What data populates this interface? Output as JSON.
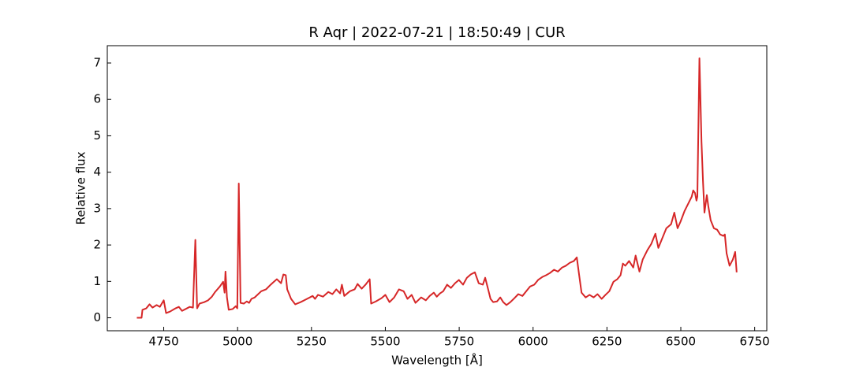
{
  "chart_data": {
    "type": "line",
    "title": "R Aqr | 2022-07-21 | 18:50:49 | CUR",
    "xlabel": "Wavelength [Å]",
    "ylabel": "Relative flux",
    "color": "#d62728",
    "x": [
      4659,
      4675,
      4678,
      4691,
      4702,
      4712,
      4726,
      4737,
      4750,
      4758,
      4771,
      4790,
      4801,
      4812,
      4838,
      4849,
      4857,
      4863,
      4871,
      4887,
      4900,
      4913,
      4924,
      4940,
      4951,
      4956,
      4959,
      4964,
      4970,
      4983,
      4994,
      4999,
      5004,
      5010,
      5021,
      5031,
      5039,
      5047,
      5058,
      5080,
      5096,
      5112,
      5120,
      5133,
      5147,
      5155,
      5163,
      5168,
      5181,
      5195,
      5213,
      5235,
      5254,
      5262,
      5272,
      5289,
      5307,
      5321,
      5334,
      5347,
      5353,
      5361,
      5380,
      5396,
      5406,
      5420,
      5433,
      5447,
      5452,
      5468,
      5487,
      5500,
      5514,
      5530,
      5546,
      5562,
      5575,
      5589,
      5602,
      5621,
      5637,
      5650,
      5664,
      5674,
      5685,
      5696,
      5709,
      5722,
      5736,
      5749,
      5763,
      5776,
      5789,
      5803,
      5816,
      5830,
      5838,
      5848,
      5856,
      5865,
      5878,
      5889,
      5899,
      5910,
      5923,
      5937,
      5950,
      5964,
      5977,
      5990,
      6004,
      6017,
      6031,
      6044,
      6057,
      6071,
      6084,
      6098,
      6111,
      6124,
      6138,
      6148,
      6156,
      6164,
      6178,
      6191,
      6205,
      6218,
      6232,
      6245,
      6258,
      6272,
      6285,
      6296,
      6304,
      6312,
      6325,
      6339,
      6347,
      6360,
      6371,
      6387,
      6400,
      6414,
      6424,
      6435,
      6451,
      6467,
      6478,
      6489,
      6499,
      6513,
      6526,
      6537,
      6542,
      6548,
      6553,
      6556,
      6563,
      6570,
      6575,
      6580,
      6588,
      6593,
      6601,
      6612,
      6623,
      6633,
      6644,
      6649,
      6655,
      6665,
      6676,
      6684,
      6689
    ],
    "values": [
      0,
      0,
      0.22,
      0.26,
      0.37,
      0.28,
      0.35,
      0.3,
      0.48,
      0.13,
      0.17,
      0.26,
      0.3,
      0.19,
      0.3,
      0.28,
      2.14,
      0.26,
      0.39,
      0.43,
      0.48,
      0.58,
      0.71,
      0.86,
      0.99,
      0.69,
      1.27,
      0.56,
      0.22,
      0.24,
      0.32,
      0.26,
      3.69,
      0.41,
      0.39,
      0.45,
      0.41,
      0.52,
      0.56,
      0.73,
      0.78,
      0.91,
      0.97,
      1.06,
      0.95,
      1.19,
      1.17,
      0.78,
      0.52,
      0.37,
      0.43,
      0.52,
      0.6,
      0.52,
      0.63,
      0.58,
      0.71,
      0.65,
      0.78,
      0.67,
      0.91,
      0.6,
      0.73,
      0.78,
      0.93,
      0.8,
      0.91,
      1.06,
      0.39,
      0.45,
      0.54,
      0.63,
      0.43,
      0.56,
      0.78,
      0.73,
      0.52,
      0.63,
      0.41,
      0.56,
      0.48,
      0.6,
      0.69,
      0.58,
      0.67,
      0.73,
      0.91,
      0.82,
      0.95,
      1.04,
      0.91,
      1.1,
      1.19,
      1.25,
      0.95,
      0.91,
      1.1,
      0.78,
      0.52,
      0.43,
      0.45,
      0.56,
      0.43,
      0.35,
      0.43,
      0.54,
      0.65,
      0.6,
      0.73,
      0.86,
      0.91,
      1.04,
      1.12,
      1.17,
      1.23,
      1.32,
      1.27,
      1.38,
      1.43,
      1.51,
      1.56,
      1.66,
      1.17,
      0.69,
      0.56,
      0.63,
      0.56,
      0.65,
      0.52,
      0.63,
      0.73,
      0.99,
      1.06,
      1.17,
      1.49,
      1.43,
      1.56,
      1.38,
      1.71,
      1.27,
      1.6,
      1.86,
      2.03,
      2.31,
      1.92,
      2.14,
      2.46,
      2.57,
      2.89,
      2.46,
      2.64,
      2.94,
      3.15,
      3.33,
      3.5,
      3.43,
      3.22,
      3.33,
      7.13,
      4.84,
      3.76,
      2.89,
      3.37,
      3.07,
      2.68,
      2.46,
      2.42,
      2.29,
      2.25,
      2.29,
      1.77,
      1.43,
      1.6,
      1.81,
      1.25
    ],
    "xlim": [
      4559,
      6791
    ],
    "ylim": [
      -0.356,
      7.476
    ],
    "xticks": [
      4750,
      5000,
      5250,
      5500,
      5750,
      6000,
      6250,
      6500,
      6750
    ],
    "yticks": [
      0,
      1,
      2,
      3,
      4,
      5,
      6,
      7
    ]
  }
}
